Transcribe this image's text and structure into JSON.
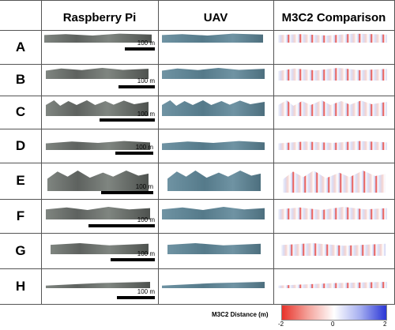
{
  "headers": {
    "raspberry": "Raspberry Pi",
    "uav": "UAV",
    "m3c2": "M3C2 Comparison"
  },
  "rows": [
    {
      "label": "A",
      "scale": "100 m"
    },
    {
      "label": "B",
      "scale": "100 m"
    },
    {
      "label": "C",
      "scale": "100 m"
    },
    {
      "label": "D",
      "scale": "100 m"
    },
    {
      "label": "E",
      "scale": "100 m"
    },
    {
      "label": "F",
      "scale": "100 m"
    },
    {
      "label": "G",
      "scale": "100 m"
    },
    {
      "label": "H",
      "scale": "100 m"
    }
  ],
  "legend": {
    "title": "M3C2 Distance (m)",
    "min": "-2",
    "mid": "0",
    "max": "2"
  },
  "colors": {
    "raspberry_strip": "#7f8580",
    "uav_strip": "#6f93a3",
    "m3c2_neg": "#e8322a",
    "m3c2_pos": "#2a36d6"
  }
}
